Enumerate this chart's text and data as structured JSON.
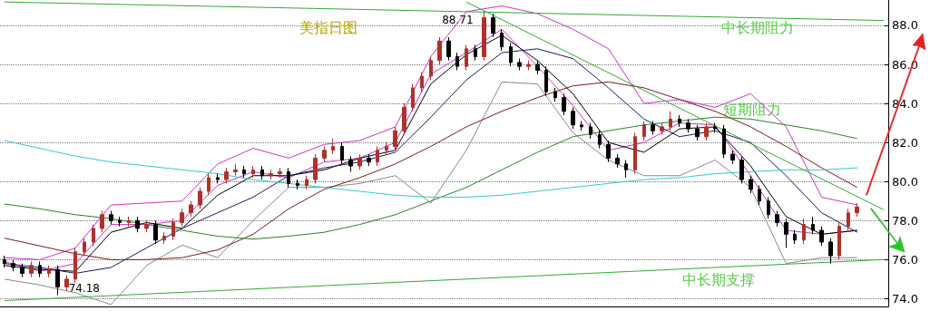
{
  "chart_data": {
    "type": "candlestick",
    "title": "美指日图",
    "categories": [
      null,
      null,
      null,
      null,
      null,
      null,
      null,
      null,
      null,
      null,
      null,
      null,
      null,
      null,
      null,
      null,
      null,
      null,
      null,
      null,
      null,
      null,
      null,
      null,
      null,
      null,
      null,
      null,
      null,
      null,
      null,
      null,
      null,
      null,
      null,
      null,
      null,
      null,
      null,
      null,
      null,
      null,
      null,
      null,
      null,
      null,
      null,
      null,
      null,
      null,
      null,
      null,
      null,
      null,
      null,
      null,
      null,
      null,
      null,
      null,
      null,
      null,
      null,
      null,
      null,
      null,
      null,
      null,
      null,
      null,
      null,
      null,
      null,
      null,
      null,
      null,
      null,
      null,
      null,
      null,
      null,
      null,
      null,
      null,
      null,
      null,
      null,
      null,
      null,
      null,
      null,
      null,
      null,
      null,
      null,
      null,
      null,
      null,
      null,
      null
    ],
    "ylim": [
      73.6,
      89.3
    ],
    "yticks": [
      {
        "value": 74,
        "label": "74.0"
      },
      {
        "value": 76,
        "label": "76.0"
      },
      {
        "value": 78,
        "label": "78.0"
      },
      {
        "value": 80,
        "label": "80.0"
      },
      {
        "value": 82,
        "label": "82.0"
      },
      {
        "value": 84,
        "label": "84.0"
      },
      {
        "value": 86,
        "label": "86.0"
      },
      {
        "value": 88,
        "label": "88.0"
      }
    ],
    "grid": "y",
    "tick_labels": "y",
    "annotations": [
      "中长期阻力",
      "短期阻力",
      "中长期支撑",
      {
        "text": "88.71",
        "y": 88.71
      },
      {
        "text": "74.18",
        "y": 74.18
      }
    ],
    "series": [
      {
        "colors": [
          "#000000",
          "#000000",
          "#000000",
          "#b0302a",
          "#000000",
          "#b0302a",
          "#000000",
          "#b0302a",
          "#b0302a",
          "#b0302a",
          "#b0302a",
          "#b0302a",
          "#000000",
          "#000000",
          "#b0302a",
          "#000000",
          "#b0302a",
          "#000000",
          "#b0302a",
          "#b0302a",
          "#b0302a",
          "#b0302a",
          "#b0302a",
          "#b0302a",
          "#000000",
          "#b0302a",
          "#b0302a",
          "#000000",
          "#b0302a",
          "#000000",
          "#b0302a",
          "#b0302a",
          "#000000",
          "#000000",
          "#b0302a",
          "#b0302a",
          "#b0302a",
          "#b0302a",
          "#000000",
          "#000000",
          "#b0302a",
          "#000000",
          "#b0302a",
          "#b0302a",
          "#b0302a",
          "#b0302a",
          "#b0302a",
          "#b0302a",
          "#b0302a",
          "#b0302a",
          "#000000",
          "#000000",
          "#b0302a",
          "#000000",
          "#b0302a",
          "#000000",
          "#000000",
          "#000000",
          "#000000",
          "#b0302a",
          "#000000",
          "#000000",
          "#000000",
          "#000000",
          "#000000",
          "#000000",
          "#000000",
          "#000000",
          "#000000",
          "#000000",
          "#000000",
          "#b0302a",
          "#b0302a",
          "#000000",
          "#b0302a",
          "#b0302a",
          "#000000",
          "#000000",
          "#000000",
          "#b0302a",
          "#000000",
          "#000000",
          "#000000",
          "#000000",
          "#000000",
          "#000000",
          "#000000",
          "#000000",
          "#000000",
          "#000000",
          "#b0302a",
          "#000000",
          "#000000",
          "#000000",
          "#b0302a",
          "#b0302a",
          "#b0302a",
          null,
          null,
          null
        ],
        "ohlc": [
          [
            76.0,
            76.2,
            75.6,
            75.8
          ],
          [
            75.8,
            76.0,
            75.4,
            75.6
          ],
          [
            75.6,
            75.8,
            75.1,
            75.3
          ],
          [
            75.3,
            75.9,
            75.1,
            75.7
          ],
          [
            75.7,
            75.9,
            75.1,
            75.3
          ],
          [
            75.3,
            75.7,
            75.1,
            75.5
          ],
          [
            75.5,
            75.7,
            74.18,
            74.6
          ],
          [
            74.6,
            75.2,
            74.4,
            75.0
          ],
          [
            75.0,
            76.6,
            74.8,
            76.4
          ],
          [
            76.4,
            77.1,
            76.2,
            76.9
          ],
          [
            76.9,
            77.8,
            76.7,
            77.6
          ],
          [
            77.6,
            78.5,
            77.4,
            78.3
          ],
          [
            78.3,
            78.5,
            77.8,
            78.0
          ],
          [
            78.0,
            78.2,
            77.7,
            77.9
          ],
          [
            77.9,
            78.2,
            77.7,
            78.0
          ],
          [
            78.0,
            78.2,
            77.4,
            77.6
          ],
          [
            77.6,
            78.0,
            77.4,
            77.8
          ],
          [
            77.8,
            78.0,
            76.8,
            77.0
          ],
          [
            77.0,
            77.4,
            76.8,
            77.2
          ],
          [
            77.2,
            78.1,
            77.0,
            77.9
          ],
          [
            77.9,
            78.6,
            77.7,
            78.4
          ],
          [
            78.4,
            79.0,
            78.2,
            78.8
          ],
          [
            78.8,
            79.7,
            78.6,
            79.5
          ],
          [
            79.5,
            80.4,
            79.3,
            80.2
          ],
          [
            80.2,
            80.4,
            79.9,
            80.1
          ],
          [
            80.1,
            80.7,
            79.9,
            80.5
          ],
          [
            80.5,
            80.9,
            80.3,
            80.6
          ],
          [
            80.6,
            80.8,
            80.2,
            80.4
          ],
          [
            80.4,
            80.8,
            80.2,
            80.6
          ],
          [
            80.6,
            80.8,
            80.1,
            80.3
          ],
          [
            80.3,
            80.6,
            80.1,
            80.4
          ],
          [
            80.4,
            80.7,
            80.2,
            80.5
          ],
          [
            80.5,
            80.7,
            79.7,
            79.9
          ],
          [
            79.9,
            80.1,
            79.6,
            79.8
          ],
          [
            79.8,
            80.3,
            79.6,
            80.1
          ],
          [
            80.1,
            81.4,
            79.9,
            81.2
          ],
          [
            81.2,
            81.8,
            81.0,
            81.6
          ],
          [
            81.6,
            82.2,
            81.4,
            81.8
          ],
          [
            81.8,
            82.0,
            80.9,
            81.1
          ],
          [
            81.1,
            81.3,
            80.5,
            80.8
          ],
          [
            80.8,
            81.4,
            80.6,
            81.2
          ],
          [
            81.2,
            81.4,
            80.8,
            81.0
          ],
          [
            81.0,
            81.8,
            80.8,
            81.6
          ],
          [
            81.6,
            82.0,
            81.4,
            81.8
          ],
          [
            81.8,
            82.8,
            81.6,
            82.6
          ],
          [
            82.6,
            84.0,
            82.4,
            83.8
          ],
          [
            83.8,
            85.0,
            83.6,
            84.8
          ],
          [
            84.8,
            85.6,
            84.6,
            85.4
          ],
          [
            85.4,
            86.4,
            85.2,
            86.2
          ],
          [
            86.2,
            87.4,
            86.0,
            87.2
          ],
          [
            87.2,
            87.4,
            86.2,
            86.4
          ],
          [
            86.4,
            86.6,
            85.7,
            85.9
          ],
          [
            85.9,
            87.0,
            85.7,
            86.8
          ],
          [
            86.8,
            87.0,
            86.2,
            86.4
          ],
          [
            86.4,
            88.71,
            86.2,
            88.4
          ],
          [
            88.4,
            88.6,
            87.4,
            87.6
          ],
          [
            87.6,
            87.8,
            86.7,
            86.9
          ],
          [
            86.9,
            87.1,
            85.9,
            86.1
          ],
          [
            86.1,
            86.3,
            85.7,
            85.9
          ],
          [
            85.9,
            86.2,
            85.7,
            86.0
          ],
          [
            86.0,
            86.2,
            85.5,
            85.7
          ],
          [
            85.7,
            85.9,
            84.4,
            84.6
          ],
          [
            84.6,
            84.8,
            84.1,
            84.3
          ],
          [
            84.3,
            84.5,
            83.4,
            83.6
          ],
          [
            83.6,
            83.8,
            82.7,
            82.9
          ],
          [
            82.9,
            83.1,
            82.6,
            82.8
          ],
          [
            82.8,
            83.0,
            82.2,
            82.4
          ],
          [
            82.4,
            82.6,
            81.7,
            81.9
          ],
          [
            81.9,
            82.1,
            81.0,
            81.2
          ],
          [
            81.2,
            81.4,
            80.7,
            80.9
          ],
          [
            80.9,
            81.1,
            80.2,
            80.6
          ],
          [
            80.6,
            82.5,
            80.4,
            82.3
          ],
          [
            82.3,
            83.1,
            82.1,
            82.9
          ],
          [
            82.9,
            83.1,
            82.4,
            82.6
          ],
          [
            82.6,
            83.0,
            82.4,
            82.8
          ],
          [
            82.8,
            83.6,
            82.6,
            83.2
          ],
          [
            83.2,
            83.4,
            82.8,
            83.0
          ],
          [
            83.0,
            83.2,
            82.5,
            82.7
          ],
          [
            82.7,
            82.9,
            82.1,
            82.3
          ],
          [
            82.3,
            83.0,
            82.1,
            82.8
          ],
          [
            82.8,
            83.0,
            82.5,
            82.7
          ],
          [
            82.7,
            82.9,
            81.2,
            81.4
          ],
          [
            81.4,
            81.6,
            80.9,
            81.1
          ],
          [
            81.1,
            81.3,
            79.9,
            80.1
          ],
          [
            80.1,
            80.3,
            79.4,
            79.6
          ],
          [
            79.6,
            79.8,
            78.8,
            79.0
          ],
          [
            79.0,
            79.2,
            78.1,
            78.3
          ],
          [
            78.3,
            78.5,
            77.7,
            77.9
          ],
          [
            77.9,
            78.1,
            76.6,
            77.3
          ],
          [
            77.3,
            77.5,
            76.8,
            77.0
          ],
          [
            77.0,
            78.1,
            76.8,
            77.8
          ],
          [
            77.8,
            78.2,
            77.3,
            77.5
          ],
          [
            77.5,
            77.7,
            76.7,
            76.9
          ],
          [
            76.9,
            77.1,
            75.8,
            76.2
          ],
          [
            76.2,
            77.9,
            76.0,
            77.7
          ],
          [
            77.7,
            78.6,
            77.5,
            78.4
          ],
          [
            78.4,
            78.9,
            78.2,
            78.7
          ],
          null,
          null,
          null
        ]
      },
      {
        "type": "line",
        "color": "#cc33cc",
        "values": [
          76.1,
          null,
          null,
          null,
          76.0,
          null,
          null,
          null,
          76.6,
          null,
          null,
          null,
          78.8,
          null,
          null,
          null,
          78.9,
          null,
          null,
          null,
          79.0,
          null,
          null,
          null,
          80.9,
          null,
          null,
          null,
          81.7,
          null,
          null,
          null,
          81.2,
          null,
          null,
          null,
          81.9,
          null,
          null,
          null,
          82.1,
          null,
          null,
          null,
          82.8,
          null,
          null,
          null,
          86.4,
          null,
          null,
          null,
          88.7,
          null,
          null,
          null,
          89.0,
          null,
          null,
          null,
          88.6,
          null,
          null,
          null,
          87.8,
          null,
          null,
          null,
          86.8,
          null,
          null,
          null,
          84.0,
          null,
          null,
          null,
          84.2,
          null,
          null,
          null,
          83.8,
          null,
          null,
          null,
          84.5,
          null,
          null,
          null,
          82.8,
          null,
          null,
          null,
          79.2,
          null,
          null,
          null,
          78.8,
          null,
          null,
          null
        ]
      },
      {
        "type": "line",
        "color": "#cc33cc",
        "values": [
          75.9,
          null,
          null,
          null,
          75.4,
          null,
          null,
          null,
          75.8,
          null,
          null,
          null,
          77.8,
          null,
          null,
          null,
          77.8,
          null,
          null,
          null,
          78.0,
          null,
          null,
          null,
          79.8,
          null,
          null,
          null,
          80.5,
          null,
          null,
          null,
          80.2,
          null,
          null,
          null,
          81.0,
          null,
          null,
          null,
          81.2,
          null,
          null,
          null,
          82.0,
          null,
          null,
          null,
          85.5,
          null,
          null,
          null,
          86.6,
          null,
          null,
          null,
          87.8,
          null,
          null,
          null,
          85.9,
          null,
          null,
          null,
          83.9,
          null,
          null,
          null,
          81.6,
          null,
          null,
          null,
          82.0,
          null,
          null,
          null,
          83.0,
          null,
          null,
          null,
          82.9,
          null,
          null,
          null,
          80.3,
          null,
          null,
          null,
          77.5,
          null,
          null,
          null,
          77.3,
          null,
          null,
          null,
          77.5,
          null,
          null,
          null
        ]
      },
      {
        "type": "line",
        "color": "#888888",
        "values": [
          75.0,
          null,
          null,
          null,
          74.7,
          null,
          null,
          null,
          74.3,
          null,
          null,
          null,
          73.7,
          null,
          null,
          null,
          75.7,
          null,
          null,
          null,
          76.75,
          null,
          null,
          null,
          76.1,
          null,
          null,
          null,
          78.0,
          null,
          null,
          null,
          79.7,
          null,
          null,
          null,
          79.7,
          null,
          null,
          null,
          79.9,
          null,
          null,
          null,
          80.3,
          null,
          null,
          null,
          78.9,
          null,
          null,
          null,
          81.6,
          null,
          null,
          null,
          85.1,
          null,
          null,
          null,
          85.0,
          null,
          null,
          null,
          82.5,
          null,
          null,
          null,
          81.1,
          null,
          null,
          null,
          80.3,
          null,
          null,
          null,
          80.3,
          null,
          null,
          null,
          81.1,
          null,
          null,
          null,
          79.7,
          null,
          null,
          null,
          75.8,
          null,
          null,
          null,
          76.1,
          null,
          null,
          null,
          76.1,
          null,
          null,
          null
        ]
      },
      {
        "type": "line",
        "color": "#000000",
        "values": [
          75.7,
          null,
          null,
          null,
          75.5,
          null,
          null,
          null,
          75.4,
          null,
          null,
          null,
          77.4,
          null,
          null,
          null,
          77.9,
          null,
          null,
          null,
          77.6,
          null,
          null,
          null,
          79.3,
          null,
          null,
          null,
          80.3,
          null,
          null,
          null,
          80.3,
          null,
          null,
          null,
          80.6,
          null,
          null,
          null,
          81.2,
          null,
          null,
          null,
          81.6,
          null,
          null,
          null,
          85.0,
          null,
          null,
          null,
          86.5,
          null,
          null,
          null,
          87.5,
          null,
          null,
          null,
          86.2,
          null,
          null,
          null,
          84.5,
          null,
          null,
          null,
          82.0,
          null,
          null,
          null,
          81.5,
          null,
          null,
          null,
          82.7,
          null,
          null,
          null,
          82.8,
          null,
          null,
          null,
          80.8,
          null,
          null,
          null,
          78.2,
          null,
          null,
          null,
          77.3,
          null,
          null,
          null,
          77.5,
          null,
          null,
          null
        ]
      },
      {
        "type": "line",
        "color": "#1a1a66",
        "values": [
          75.8,
          null,
          null,
          null,
          75.6,
          null,
          null,
          null,
          75.3,
          null,
          null,
          null,
          75.6,
          null,
          null,
          null,
          76.6,
          null,
          null,
          null,
          77.6,
          null,
          null,
          null,
          78.4,
          null,
          null,
          null,
          79.2,
          null,
          null,
          null,
          80.3,
          null,
          null,
          null,
          80.7,
          null,
          null,
          null,
          81.0,
          null,
          null,
          null,
          81.5,
          null,
          null,
          null,
          83.3,
          null,
          null,
          null,
          85.2,
          null,
          null,
          null,
          86.6,
          null,
          null,
          null,
          86.8,
          null,
          null,
          null,
          86.3,
          null,
          null,
          null,
          84.8,
          null,
          null,
          null,
          83.2,
          null,
          null,
          null,
          82.3,
          null,
          null,
          null,
          82.6,
          null,
          null,
          null,
          82.0,
          null,
          null,
          null,
          80.3,
          null,
          null,
          null,
          78.4,
          null,
          null,
          null,
          77.4,
          null,
          null,
          null
        ]
      },
      {
        "type": "line",
        "color": "#7a1a1a",
        "values": [
          77.1,
          null,
          null,
          null,
          76.7,
          null,
          null,
          null,
          76.3,
          null,
          null,
          null,
          76.0,
          null,
          null,
          null,
          76.0,
          null,
          null,
          null,
          76.1,
          null,
          null,
          null,
          76.5,
          null,
          null,
          null,
          77.3,
          null,
          null,
          null,
          78.6,
          null,
          null,
          null,
          79.6,
          null,
          null,
          null,
          80.2,
          null,
          null,
          null,
          80.9,
          null,
          null,
          null,
          81.8,
          null,
          null,
          null,
          82.8,
          null,
          null,
          null,
          83.6,
          null,
          null,
          null,
          84.3,
          null,
          null,
          null,
          84.9,
          null,
          null,
          null,
          85.1,
          null,
          null,
          null,
          84.8,
          null,
          null,
          null,
          84.2,
          null,
          null,
          null,
          83.6,
          null,
          null,
          null,
          82.8,
          null,
          null,
          null,
          81.8,
          null,
          null,
          null,
          80.7,
          null,
          null,
          null,
          79.7,
          null,
          null,
          null
        ]
      },
      {
        "type": "line",
        "color": "#228822",
        "values": [
          78.85,
          null,
          null,
          null,
          78.6,
          null,
          null,
          null,
          78.3,
          null,
          null,
          null,
          78.1,
          null,
          null,
          null,
          77.8,
          null,
          null,
          null,
          77.5,
          null,
          null,
          null,
          77.2,
          null,
          null,
          null,
          77.05,
          null,
          null,
          null,
          77.2,
          null,
          null,
          null,
          77.4,
          null,
          null,
          null,
          77.8,
          null,
          null,
          null,
          78.3,
          null,
          null,
          null,
          79.0,
          null,
          null,
          null,
          79.7,
          null,
          null,
          null,
          80.6,
          null,
          null,
          null,
          81.5,
          null,
          null,
          null,
          82.3,
          null,
          null,
          null,
          82.6,
          null,
          null,
          null,
          82.9,
          null,
          null,
          null,
          83.1,
          null,
          null,
          null,
          83.3,
          null,
          null,
          null,
          83.2,
          null,
          null,
          null,
          82.9,
          null,
          null,
          null,
          82.6,
          null,
          null,
          null,
          82.2,
          null,
          null,
          null
        ]
      },
      {
        "type": "line",
        "color": "#33cccc",
        "values": [
          82.1,
          null,
          null,
          null,
          81.7,
          null,
          null,
          null,
          81.3,
          null,
          null,
          null,
          81.0,
          null,
          null,
          null,
          80.8,
          null,
          null,
          null,
          80.6,
          null,
          null,
          null,
          80.4,
          null,
          null,
          null,
          80.1,
          null,
          null,
          null,
          79.9,
          null,
          null,
          null,
          79.7,
          null,
          null,
          null,
          79.5,
          null,
          null,
          null,
          79.3,
          null,
          null,
          null,
          79.2,
          null,
          null,
          null,
          79.2,
          null,
          null,
          null,
          79.3,
          null,
          null,
          null,
          79.5,
          null,
          null,
          null,
          79.7,
          null,
          null,
          null,
          79.9,
          null,
          null,
          null,
          80.1,
          null,
          null,
          null,
          80.2,
          null,
          null,
          null,
          80.4,
          null,
          null,
          null,
          80.5,
          null,
          null,
          null,
          80.6,
          null,
          null,
          null,
          80.6,
          null,
          null,
          null,
          80.7,
          null,
          null,
          null
        ]
      },
      {
        "type": "line",
        "color": "#33aa33",
        "values": [
          89.2,
          null,
          null,
          null,
          null,
          null,
          null,
          null,
          null,
          null,
          null,
          null,
          null,
          null,
          null,
          null,
          null,
          null,
          null,
          null,
          null,
          null,
          null,
          null,
          null,
          null,
          null,
          null,
          null,
          null,
          null,
          null,
          null,
          null,
          null,
          null,
          null,
          null,
          null,
          null,
          null,
          null,
          null,
          null,
          null,
          null,
          null,
          null,
          null,
          null,
          null,
          null,
          null,
          null,
          null,
          null,
          null,
          null,
          null,
          null,
          null,
          null,
          null,
          null,
          null,
          null,
          null,
          null,
          null,
          null,
          null,
          null,
          null,
          null,
          null,
          null,
          null,
          null,
          null,
          null,
          null,
          null,
          null,
          null,
          null,
          null,
          null,
          null,
          null,
          null,
          null,
          null,
          null,
          null,
          null,
          null,
          null,
          null,
          null,
          88.25
        ]
      },
      {
        "type": "line",
        "color": "#33aa33",
        "values": [
          null,
          null,
          null,
          null,
          null,
          null,
          null,
          null,
          null,
          null,
          null,
          null,
          null,
          null,
          null,
          null,
          null,
          null,
          null,
          null,
          null,
          null,
          null,
          null,
          null,
          null,
          null,
          null,
          null,
          null,
          null,
          null,
          null,
          null,
          null,
          null,
          null,
          null,
          null,
          null,
          null,
          null,
          null,
          null,
          null,
          null,
          null,
          null,
          null,
          null,
          null,
          null,
          89.2,
          null,
          null,
          null,
          null,
          null,
          null,
          null,
          null,
          null,
          null,
          null,
          null,
          null,
          null,
          null,
          null,
          null,
          null,
          null,
          null,
          null,
          null,
          null,
          null,
          null,
          null,
          null,
          null,
          null,
          null,
          null,
          null,
          null,
          null,
          null,
          null,
          null,
          null,
          null,
          null,
          null,
          null,
          null,
          null,
          null,
          null,
          78.55
        ]
      },
      {
        "type": "line",
        "color": "#33aa33",
        "values": [
          73.9,
          null,
          null,
          null,
          null,
          null,
          null,
          null,
          null,
          null,
          null,
          null,
          null,
          null,
          null,
          null,
          null,
          null,
          null,
          null,
          null,
          null,
          null,
          null,
          null,
          null,
          null,
          null,
          null,
          null,
          null,
          null,
          null,
          null,
          null,
          null,
          null,
          null,
          null,
          null,
          null,
          null,
          null,
          null,
          null,
          null,
          null,
          null,
          null,
          null,
          null,
          null,
          null,
          null,
          null,
          null,
          null,
          null,
          null,
          null,
          null,
          null,
          null,
          null,
          null,
          null,
          null,
          null,
          null,
          null,
          null,
          null,
          null,
          null,
          null,
          null,
          null,
          null,
          null,
          null,
          null,
          null,
          null,
          null,
          null,
          null,
          null,
          null,
          null,
          null,
          null,
          null,
          null,
          null,
          null,
          null,
          null,
          null,
          null,
          76.0
        ]
      }
    ]
  }
}
